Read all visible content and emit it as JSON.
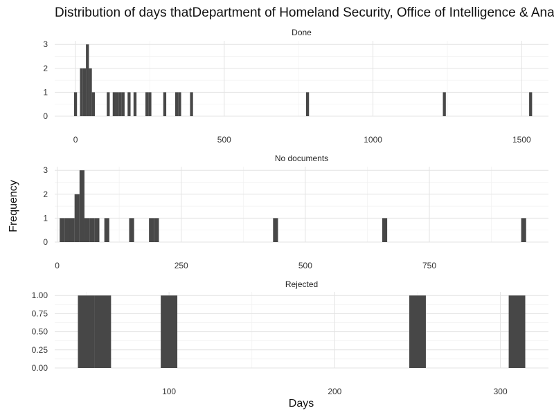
{
  "chart_data": {
    "type": "bar",
    "title": "Distribution of days thatDepartment of Homeland Security, Office of Intelligence & Analysis",
    "xlabel": "Days",
    "ylabel": "Frequency",
    "grid": true,
    "panels": [
      {
        "name": "Done",
        "xlim": [
          -70,
          1590
        ],
        "ylim": [
          0,
          3.15
        ],
        "x_ticks": [
          0,
          500,
          1000,
          1500
        ],
        "y_ticks": [
          0,
          1,
          2,
          3
        ],
        "bin_width": 10,
        "bins": [
          {
            "x": 0,
            "count": 1
          },
          {
            "x": 20,
            "count": 2
          },
          {
            "x": 30,
            "count": 2
          },
          {
            "x": 40,
            "count": 3
          },
          {
            "x": 50,
            "count": 2
          },
          {
            "x": 60,
            "count": 1
          },
          {
            "x": 110,
            "count": 1
          },
          {
            "x": 130,
            "count": 1
          },
          {
            "x": 140,
            "count": 1
          },
          {
            "x": 150,
            "count": 1
          },
          {
            "x": 160,
            "count": 1
          },
          {
            "x": 180,
            "count": 1
          },
          {
            "x": 200,
            "count": 1
          },
          {
            "x": 240,
            "count": 1
          },
          {
            "x": 250,
            "count": 1
          },
          {
            "x": 300,
            "count": 1
          },
          {
            "x": 340,
            "count": 1
          },
          {
            "x": 350,
            "count": 1
          },
          {
            "x": 390,
            "count": 1
          },
          {
            "x": 780,
            "count": 1
          },
          {
            "x": 1240,
            "count": 1
          },
          {
            "x": 1530,
            "count": 1
          }
        ]
      },
      {
        "name": "No documents",
        "xlim": [
          -5,
          990
        ],
        "ylim": [
          0,
          3.15
        ],
        "x_ticks": [
          0,
          250,
          500,
          750
        ],
        "x_tick_labels": [
          "0",
          "250",
          "500",
          "750"
        ],
        "y_ticks": [
          0,
          1,
          2,
          3
        ],
        "bin_width": 10,
        "bins": [
          {
            "x": 10,
            "count": 1
          },
          {
            "x": 20,
            "count": 1
          },
          {
            "x": 30,
            "count": 1
          },
          {
            "x": 40,
            "count": 2
          },
          {
            "x": 50,
            "count": 3
          },
          {
            "x": 60,
            "count": 1
          },
          {
            "x": 70,
            "count": 1
          },
          {
            "x": 80,
            "count": 1
          },
          {
            "x": 100,
            "count": 1
          },
          {
            "x": 150,
            "count": 1
          },
          {
            "x": 190,
            "count": 1
          },
          {
            "x": 200,
            "count": 1
          },
          {
            "x": 440,
            "count": 1
          },
          {
            "x": 660,
            "count": 1
          },
          {
            "x": 940,
            "count": 1
          }
        ]
      },
      {
        "name": "Rejected",
        "xlim": [
          31,
          329
        ],
        "ylim": [
          0,
          1.05
        ],
        "x_ticks": [
          100,
          200,
          300
        ],
        "y_ticks": [
          0,
          0.25,
          0.5,
          0.75,
          1
        ],
        "y_tick_labels": [
          "0.00",
          "0.25",
          "0.50",
          "0.75",
          "1.00"
        ],
        "bin_width": 10,
        "bins": [
          {
            "x": 50,
            "count": 1
          },
          {
            "x": 60,
            "count": 1
          },
          {
            "x": 100,
            "count": 1
          },
          {
            "x": 250,
            "count": 1
          },
          {
            "x": 310,
            "count": 1
          }
        ]
      }
    ]
  }
}
